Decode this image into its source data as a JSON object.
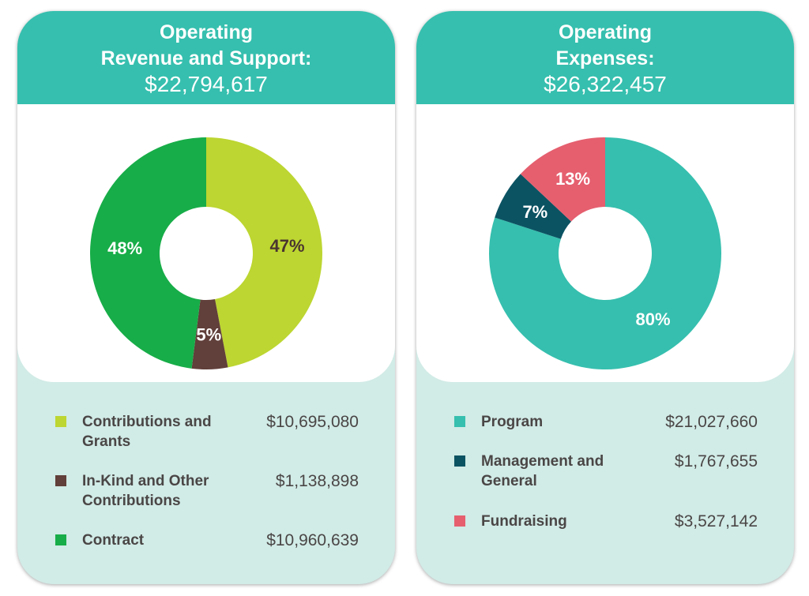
{
  "revenue": {
    "title_line1": "Operating",
    "title_line2": "Revenue and Support:",
    "total": "$22,794,617",
    "legend": [
      {
        "label": "Contributions and Grants",
        "amount": "$10,695,080",
        "color": "#bdd631"
      },
      {
        "label": "In-Kind and Other Contributions",
        "amount": "$1,138,898",
        "color": "#613f3a"
      },
      {
        "label": "Contract",
        "amount": "$10,960,639",
        "color": "#17ad48"
      }
    ]
  },
  "expenses": {
    "title_line1": "Operating",
    "title_line2": "Expenses:",
    "total": "$26,322,457",
    "legend": [
      {
        "label": "Program",
        "amount": "$21,027,660",
        "color": "#36bfae"
      },
      {
        "label": "Management and General",
        "amount": "$1,767,655",
        "color": "#0b5363"
      },
      {
        "label": "Fundraising",
        "amount": "$3,527,142",
        "color": "#e55f6f"
      }
    ]
  },
  "chart_data": [
    {
      "type": "pie",
      "title": "Operating Revenue and Support: $22,794,617",
      "slices": [
        {
          "label": "Contributions and Grants",
          "value": 47,
          "data_label": "47%",
          "color": "#bdd631",
          "label_color": "#4a3530"
        },
        {
          "label": "In-Kind and Other Contributions",
          "value": 5,
          "data_label": "5%",
          "color": "#613f3a",
          "label_color": "#ffffff"
        },
        {
          "label": "Contract",
          "value": 48,
          "data_label": "48%",
          "color": "#17ad48",
          "label_color": "#ffffff"
        }
      ]
    },
    {
      "type": "pie",
      "title": "Operating Expenses: $26,322,457",
      "slices": [
        {
          "label": "Program",
          "value": 80,
          "data_label": "80%",
          "color": "#36bfae",
          "label_color": "#ffffff"
        },
        {
          "label": "Management and General",
          "value": 7,
          "data_label": "7%",
          "color": "#0b5363",
          "label_color": "#ffffff"
        },
        {
          "label": "Fundraising",
          "value": 13,
          "data_label": "13%",
          "color": "#e55f6f",
          "label_color": "#ffffff"
        }
      ]
    }
  ]
}
